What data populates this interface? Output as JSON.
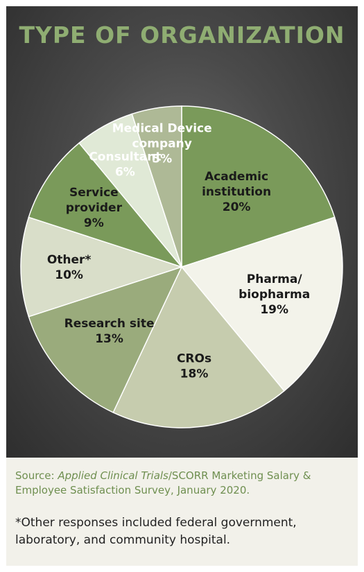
{
  "chart_data": {
    "type": "pie",
    "title": "TYPE OF ORGANIZATION",
    "slices": [
      {
        "label": [
          "Academic",
          "institution"
        ],
        "value": 20,
        "display": "20%",
        "color": "#7a9a5a",
        "text_color": "#1a1a1a"
      },
      {
        "label": [
          "Pharma/",
          "biopharma"
        ],
        "value": 19,
        "display": "19%",
        "color": "#f3f3ea",
        "text_color": "#1a1a1a"
      },
      {
        "label": [
          "CROs"
        ],
        "value": 18,
        "display": "18%",
        "color": "#c6ccae",
        "text_color": "#1a1a1a"
      },
      {
        "label": [
          "Research site"
        ],
        "value": 13,
        "display": "13%",
        "color": "#9aab7c",
        "text_color": "#1a1a1a"
      },
      {
        "label": [
          "Other*"
        ],
        "value": 10,
        "display": "10%",
        "color": "#d9dec9",
        "text_color": "#1a1a1a"
      },
      {
        "label": [
          "Service",
          "provider"
        ],
        "value": 9,
        "display": "9%",
        "color": "#7a9a5a",
        "text_color": "#1a1a1a"
      },
      {
        "label": [
          "Consultant"
        ],
        "value": 6,
        "display": "6%",
        "color": "#e0e9d6",
        "text_color": "#ffffff"
      },
      {
        "label": [
          "Medical Device",
          "company"
        ],
        "value": 5,
        "display": "5%",
        "color": "#aeb996",
        "text_color": "#ffffff"
      }
    ]
  },
  "footer": {
    "source_prefix": "Source: ",
    "source_italic": "Applied Clinical Trials",
    "source_rest": "/SCORR Marketing Salary & Employee Satisfaction Survey, January 2020.",
    "note": "*Other responses included federal government, laboratory, and community hospital."
  },
  "colors": {
    "title": "#8fad72",
    "background": "#3d3d3d",
    "source_text": "#6f8f50",
    "slice_border": "#ffffff"
  }
}
